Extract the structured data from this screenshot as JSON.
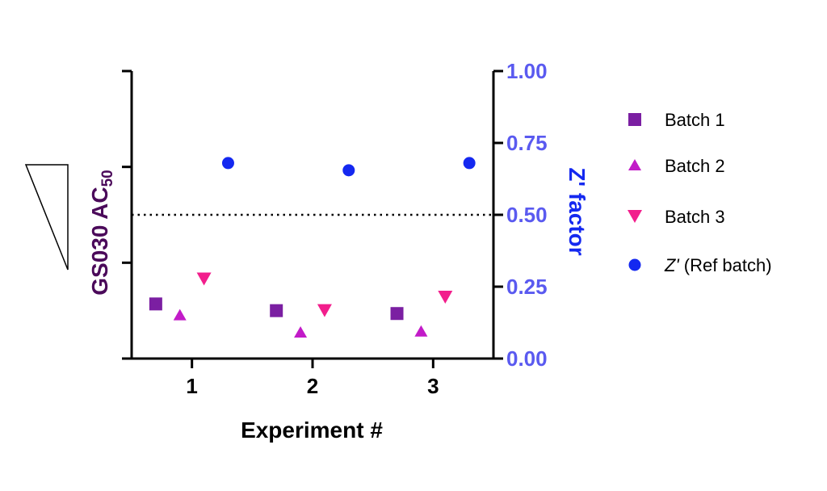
{
  "chart_data": {
    "type": "scatter",
    "xlabel": "Experiment #",
    "x_ticks": [
      "1",
      "2",
      "3"
    ],
    "xlim": [
      0.5,
      3.5
    ],
    "y_left_label_main": "GS030  AC",
    "y_left_label_sub": "50",
    "y_left_range": [
      0,
      3
    ],
    "y_right_label": "Z' factor",
    "y_right_range": [
      0,
      1
    ],
    "y_right_ticks": [
      "0.00",
      "0.25",
      "0.50",
      "0.75",
      "1.00"
    ],
    "reference_line": 0.5,
    "series": [
      {
        "name": "Batch 1",
        "axis": "left",
        "marker": "square",
        "color": "#7B1FA2",
        "points": [
          {
            "x": 0.7,
            "y": 0.57
          },
          {
            "x": 1.7,
            "y": 0.5
          },
          {
            "x": 2.7,
            "y": 0.47
          }
        ]
      },
      {
        "name": "Batch 2",
        "axis": "left",
        "marker": "triangle-up",
        "color": "#C21BC8",
        "points": [
          {
            "x": 0.9,
            "y": 0.45
          },
          {
            "x": 1.9,
            "y": 0.27
          },
          {
            "x": 2.9,
            "y": 0.28
          }
        ]
      },
      {
        "name": "Batch 3",
        "axis": "left",
        "marker": "triangle-down",
        "color": "#F21E8C",
        "points": [
          {
            "x": 1.1,
            "y": 0.83
          },
          {
            "x": 2.1,
            "y": 0.5
          },
          {
            "x": 3.1,
            "y": 0.64
          }
        ]
      },
      {
        "name_italic": "Z'",
        "name": " (Ref batch)",
        "axis": "right",
        "marker": "circle",
        "color": "#1428F0",
        "points": [
          {
            "x": 1.3,
            "y": 0.68
          },
          {
            "x": 2.3,
            "y": 0.655
          },
          {
            "x": 3.3,
            "y": 0.68
          }
        ]
      }
    ],
    "colors": {
      "left_label": "#4B0A5A",
      "right_axis": "#5A5AF0",
      "right_label": "#1428F0",
      "axis": "#000000"
    }
  }
}
